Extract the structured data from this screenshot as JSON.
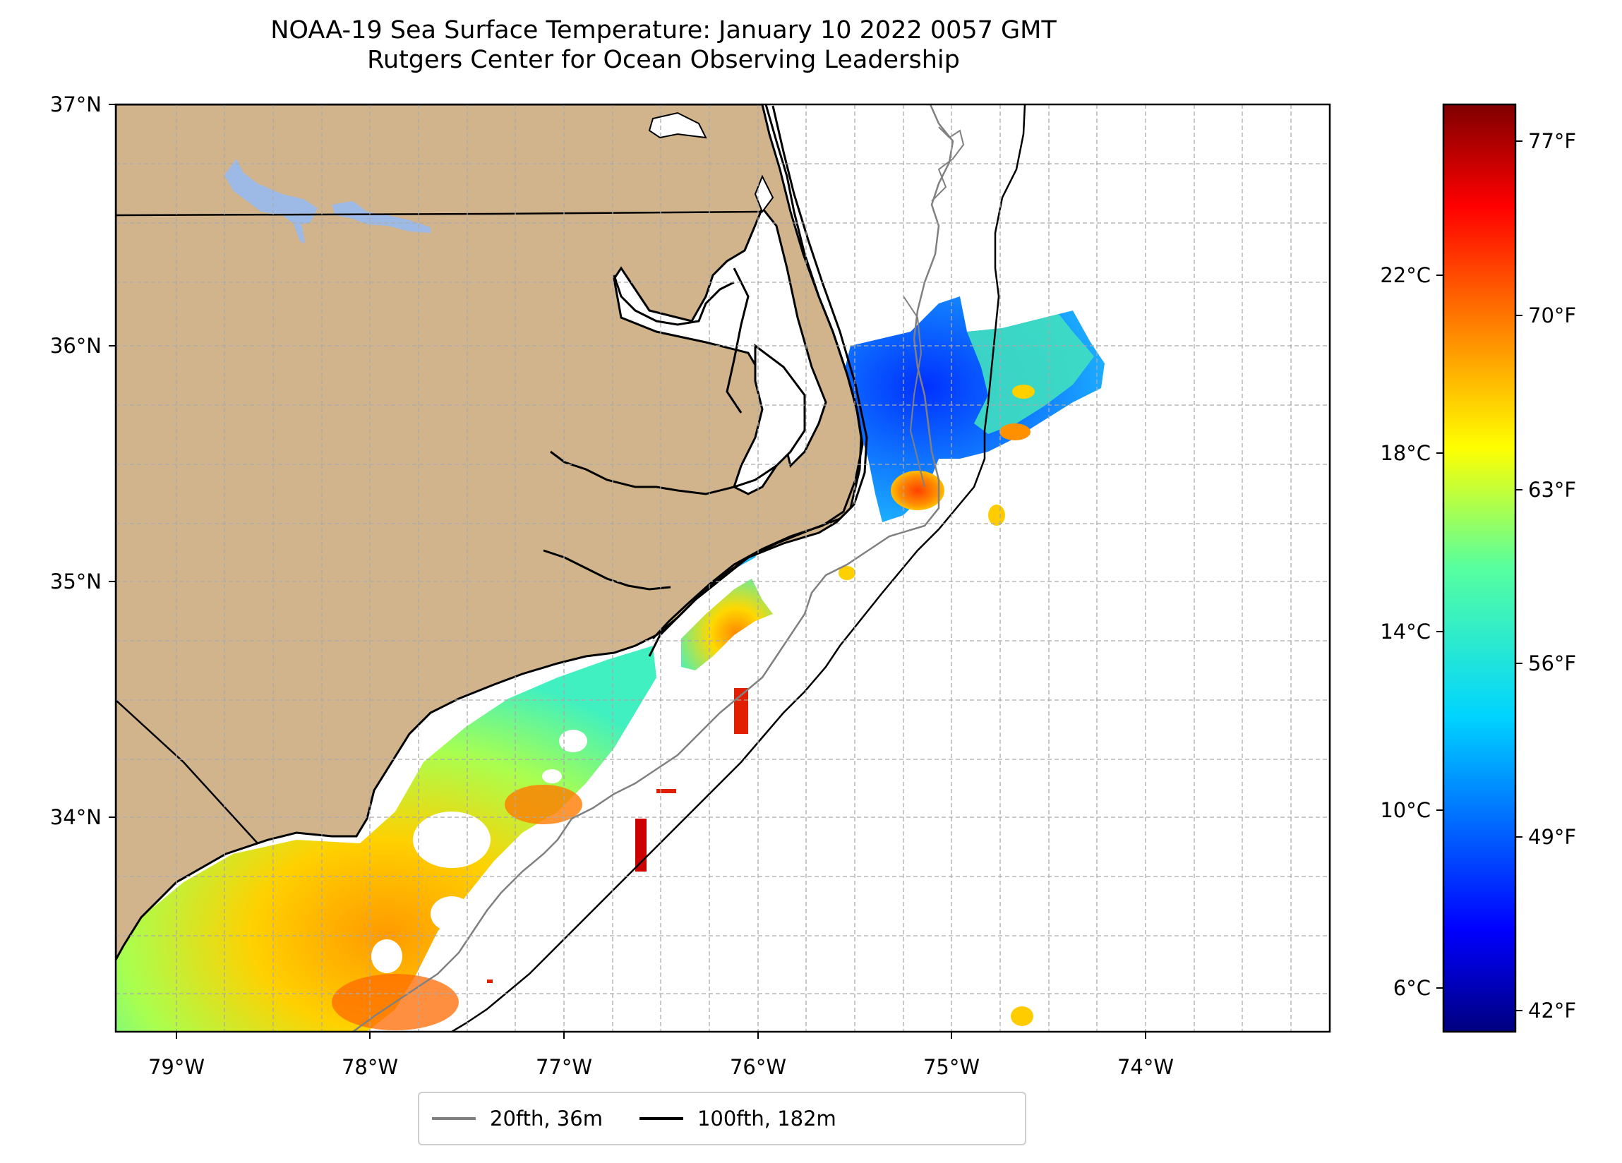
{
  "title": {
    "line1": "NOAA-19 Sea Surface Temperature: January 10 2022 0057 GMT",
    "line2": "Rutgers Center for Ocean Observing Leadership"
  },
  "map": {
    "extent": {
      "lon_min": -79.3,
      "lon_max": -73.0,
      "lat_min": 33.1,
      "lat_max": 37.0
    },
    "lon_ticks": [
      "79°W",
      "78°W",
      "77°W",
      "76°W",
      "75°W",
      "74°W"
    ],
    "lat_ticks": [
      "37°N",
      "36°N",
      "35°N",
      "34°N"
    ],
    "colors": {
      "land": "#d2b48c",
      "water_body": "#9db9e6",
      "coastline": "#000000",
      "grid": "#aaaaaa",
      "isobath_20fth": "#808080",
      "isobath_100fth": "#000000"
    }
  },
  "colorbar": {
    "colormap": "jet",
    "celsius_ticks": [
      "22°C",
      "18°C",
      "14°C",
      "10°C",
      "6°C"
    ],
    "fahrenheit_ticks": [
      "77°F",
      "70°F",
      "63°F",
      "56°F",
      "49°F",
      "42°F"
    ]
  },
  "legend": {
    "items": [
      {
        "label": "20fth, 36m",
        "color": "#808080"
      },
      {
        "label": "100fth, 182m",
        "color": "#000000"
      }
    ]
  }
}
